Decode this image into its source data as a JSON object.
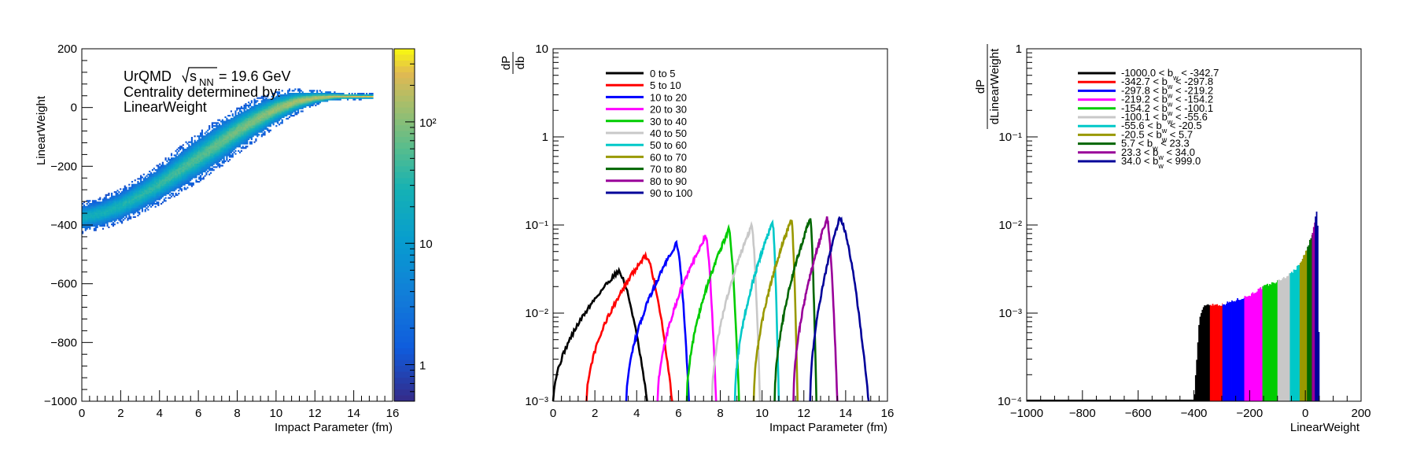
{
  "chart_data": [
    {
      "type": "heatmap",
      "title": "UrQMD √sNN = 19.6 GeV",
      "title_lines": [
        "Centrality determined by:",
        "LinearWeight"
      ],
      "annotation": {
        "model": "UrQMD",
        "sqrt_label": "s",
        "sqrt_sub": "NN",
        "energy": "= 19.6 GeV"
      },
      "xlabel": "Impact Parameter (fm)",
      "ylabel": "LinearWeight",
      "xlim": [
        0,
        16
      ],
      "ylim": [
        -1000,
        200
      ],
      "xticks": [
        "0",
        "2",
        "4",
        "6",
        "8",
        "10",
        "12",
        "14",
        "16"
      ],
      "yticks": [
        "−1000",
        "−800",
        "−600",
        "−400",
        "−200",
        "0",
        "200"
      ],
      "zscale": "log",
      "zlim": [
        0.5,
        400
      ],
      "zticks": [
        "1",
        "10",
        "10²"
      ],
      "band": {
        "b": [
          0,
          1,
          2,
          3,
          4,
          5,
          6,
          7,
          8,
          9,
          10,
          11,
          12,
          13,
          14,
          15
        ],
        "center": [
          -375,
          -360,
          -335,
          -300,
          -260,
          -215,
          -170,
          -125,
          -80,
          -40,
          -5,
          20,
          33,
          38,
          38,
          38
        ],
        "halfwidth": [
          28,
          30,
          32,
          35,
          38,
          42,
          45,
          45,
          42,
          38,
          32,
          24,
          14,
          8,
          6,
          5
        ]
      }
    },
    {
      "type": "line",
      "xlabel": "Impact Parameter (fm)",
      "ylabel_num": "dP",
      "ylabel_den": "db",
      "xlim": [
        0,
        16
      ],
      "ylim": [
        0.001,
        10
      ],
      "yscale": "log",
      "xticks": [
        "0",
        "2",
        "4",
        "6",
        "8",
        "10",
        "12",
        "14",
        "16"
      ],
      "yticks": [
        "10⁻³",
        "10⁻²",
        "10⁻¹",
        "1",
        "10"
      ],
      "legend_position": "top-left",
      "series": [
        {
          "name": "0 to 5",
          "color": "#000000",
          "bmin": 0.0,
          "bmax": 4.5,
          "peak": 0.03,
          "peak_b": 3.1
        },
        {
          "name": "5 to 10",
          "color": "#ff0000",
          "bmin": 1.6,
          "bmax": 5.7,
          "peak": 0.045,
          "peak_b": 4.4
        },
        {
          "name": "10 to 20",
          "color": "#0000ff",
          "bmin": 3.5,
          "bmax": 6.5,
          "peak": 0.062,
          "peak_b": 5.9
        },
        {
          "name": "20 to 30",
          "color": "#ff00ff",
          "bmin": 5.0,
          "bmax": 7.8,
          "peak": 0.075,
          "peak_b": 7.3
        },
        {
          "name": "30 to 40",
          "color": "#00cc00",
          "bmin": 6.4,
          "bmax": 8.9,
          "peak": 0.088,
          "peak_b": 8.4
        },
        {
          "name": "40 to 50",
          "color": "#c8c8c8",
          "bmin": 7.6,
          "bmax": 9.9,
          "peak": 0.098,
          "peak_b": 9.5
        },
        {
          "name": "50 to 60",
          "color": "#00c8c8",
          "bmin": 8.7,
          "bmax": 10.8,
          "peak": 0.108,
          "peak_b": 10.5
        },
        {
          "name": "60 to 70",
          "color": "#999900",
          "bmin": 9.6,
          "bmax": 11.7,
          "peak": 0.115,
          "peak_b": 11.4
        },
        {
          "name": "70 to 80",
          "color": "#006600",
          "bmin": 10.6,
          "bmax": 12.6,
          "peak": 0.118,
          "peak_b": 12.3
        },
        {
          "name": "80 to 90",
          "color": "#990099",
          "bmin": 11.5,
          "bmax": 13.6,
          "peak": 0.12,
          "peak_b": 13.1
        },
        {
          "name": "90 to 100",
          "color": "#000099",
          "bmin": 12.3,
          "bmax": 15.1,
          "peak": 0.118,
          "peak_b": 13.7
        }
      ]
    },
    {
      "type": "bar",
      "xlabel": "LinearWeight",
      "ylabel_num": "dP",
      "ylabel_den": "dLinearWeight",
      "xlim": [
        -1000,
        200
      ],
      "ylim": [
        0.0001,
        1
      ],
      "yscale": "log",
      "xticks": [
        "−1000",
        "−800",
        "−600",
        "−400",
        "−200",
        "0",
        "200"
      ],
      "yticks": [
        "10⁻⁴",
        "10⁻³",
        "10⁻²",
        "10⁻¹",
        "1"
      ],
      "legend_position": "top-left",
      "series": [
        {
          "name": "-1000.0 < b_w < -342.7",
          "pre": "-1000.0 < b",
          "post": " < -342.7",
          "color": "#000000",
          "x0": -1000.0,
          "x1": -342.7
        },
        {
          "name": "-342.7 < b_w < -297.8",
          "pre": "-342.7 < b",
          "post": " < -297.8",
          "color": "#ff0000",
          "x0": -342.7,
          "x1": -297.8
        },
        {
          "name": "-297.8 < b_w < -219.2",
          "pre": "-297.8 < b",
          "post": " < -219.2",
          "color": "#0000ff",
          "x0": -297.8,
          "x1": -219.2
        },
        {
          "name": "-219.2 < b_w < -154.2",
          "pre": "-219.2 < b",
          "post": " < -154.2",
          "color": "#ff00ff",
          "x0": -219.2,
          "x1": -154.2
        },
        {
          "name": "-154.2 < b_w < -100.1",
          "pre": "-154.2 < b",
          "post": " < -100.1",
          "color": "#00cc00",
          "x0": -154.2,
          "x1": -100.1
        },
        {
          "name": "-100.1 < b_w < -55.6",
          "pre": "-100.1 < b",
          "post": " < -55.6",
          "color": "#c8c8c8",
          "x0": -100.1,
          "x1": -55.6
        },
        {
          "name": "-55.6 < b_w < -20.5",
          "pre": "-55.6 < b",
          "post": " < -20.5",
          "color": "#00c8c8",
          "x0": -55.6,
          "x1": -20.5
        },
        {
          "name": "-20.5 < b_w < 5.7",
          "pre": "-20.5 < b",
          "post": " < 5.7",
          "color": "#999900",
          "x0": -20.5,
          "x1": 5.7
        },
        {
          "name": "5.7 < b_w < 23.3",
          "pre": "5.7 < b",
          "post": " < 23.3",
          "color": "#006600",
          "x0": 5.7,
          "x1": 23.3
        },
        {
          "name": "23.3 < b_w < 34.0",
          "pre": "23.3 < b",
          "post": " < 34.0",
          "color": "#990099",
          "x0": 23.3,
          "x1": 34.0
        },
        {
          "name": "34.0 < b_w < 999.0",
          "pre": "34.0 < b",
          "post": " < 999.0",
          "color": "#000099",
          "x0": 34.0,
          "x1": 999.0
        }
      ],
      "profile": {
        "x": [
          -400,
          -380,
          -360,
          -340,
          -300,
          -250,
          -200,
          -150,
          -100,
          -60,
          -30,
          -10,
          5,
          15,
          25,
          30,
          35,
          40,
          45,
          50
        ],
        "y": [
          0.0001,
          0.0009,
          0.00125,
          0.00125,
          0.00125,
          0.0014,
          0.0016,
          0.002,
          0.0023,
          0.0027,
          0.0033,
          0.0042,
          0.0052,
          0.0065,
          0.008,
          0.0095,
          0.012,
          0.014,
          0.009,
          0.0001
        ]
      },
      "sub": "w"
    }
  ]
}
